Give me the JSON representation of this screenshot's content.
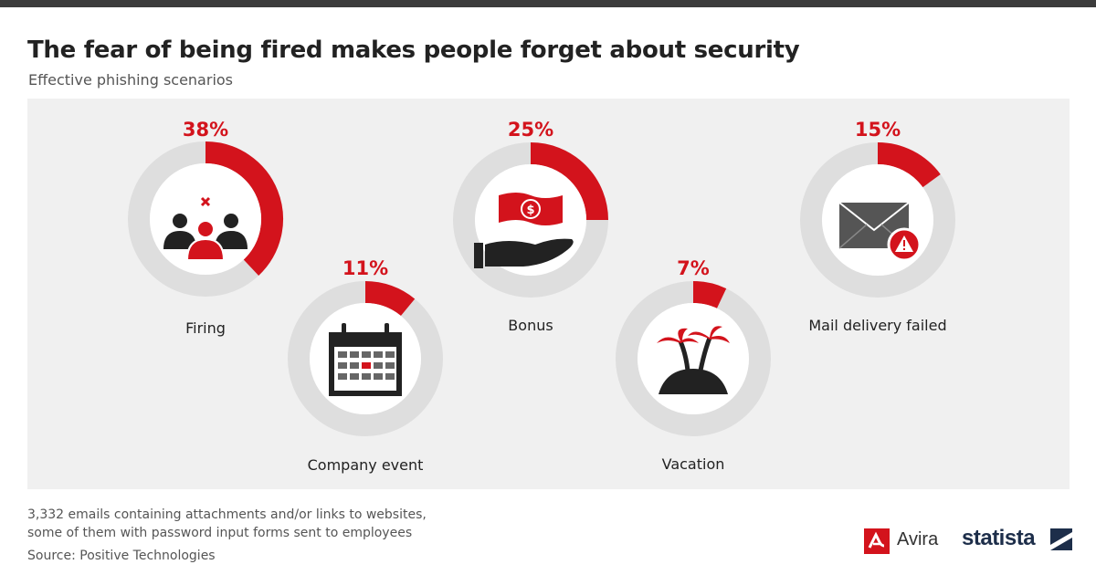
{
  "header": {
    "title": "The fear of being fired makes people forget about security",
    "subtitle": "Effective phishing scenarios"
  },
  "colors": {
    "accent": "#d3131c",
    "track": "#dedede",
    "icon_dark": "#222222",
    "panel_bg": "#f0f0f0"
  },
  "chart_data": {
    "type": "pie",
    "variant": "donut-gauges",
    "unit": "%",
    "items": [
      {
        "name": "Firing",
        "value": 38,
        "value_label": "38%",
        "icon": "people-fired-icon"
      },
      {
        "name": "Company event",
        "value": 11,
        "value_label": "11%",
        "icon": "calendar-icon"
      },
      {
        "name": "Bonus",
        "value": 25,
        "value_label": "25%",
        "icon": "money-hand-icon"
      },
      {
        "name": "Vacation",
        "value": 7,
        "value_label": "7%",
        "icon": "island-icon"
      },
      {
        "name": "Mail delivery failed",
        "value": 15,
        "value_label": "15%",
        "icon": "mail-warning-icon"
      }
    ]
  },
  "footer": {
    "note_line1": "3,332 emails containing attachments and/or links to websites,",
    "note_line2": "some of them with password input forms sent to employees",
    "source": "Source: Positive Technologies",
    "brand1": "Avira",
    "brand2": "statista"
  }
}
